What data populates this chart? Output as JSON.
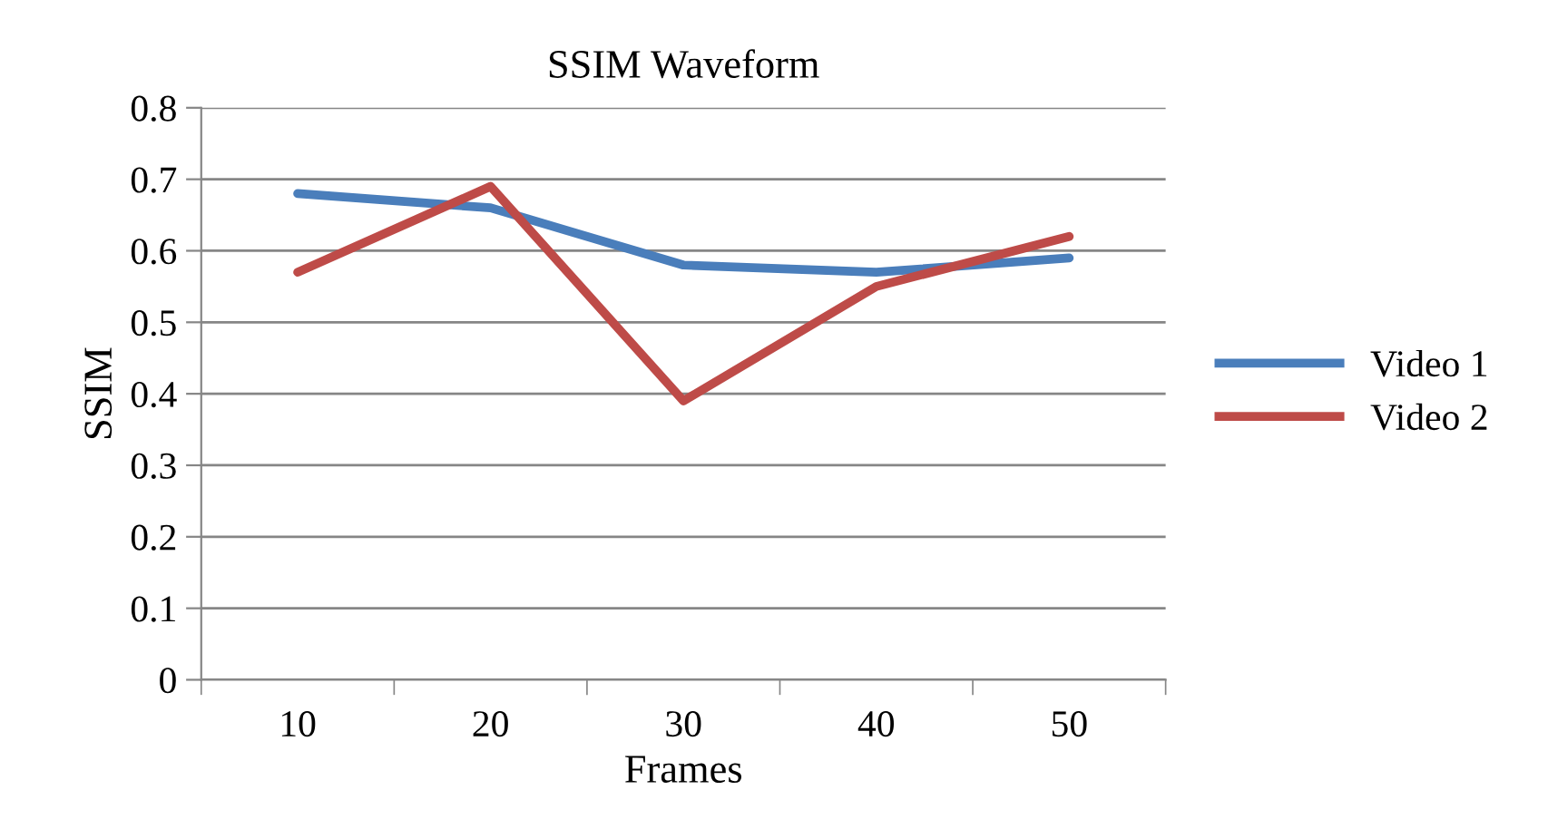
{
  "chart_data": {
    "type": "line",
    "title": "SSIM Waveform",
    "xlabel": "Frames",
    "ylabel": "SSIM",
    "categories": [
      "10",
      "20",
      "30",
      "40",
      "50"
    ],
    "series": [
      {
        "name": "Video 1",
        "color": "#4a7ebb",
        "values": [
          0.68,
          0.66,
          0.58,
          0.57,
          0.59
        ]
      },
      {
        "name": "Video 2",
        "color": "#be4b48",
        "values": [
          0.57,
          0.69,
          0.39,
          0.55,
          0.62
        ]
      }
    ],
    "ylim": [
      0,
      0.8
    ],
    "yticks": [
      0,
      0.1,
      0.2,
      0.3,
      0.4,
      0.5,
      0.6,
      0.7,
      0.8
    ],
    "grid": "y",
    "legend": "right",
    "marker": "none",
    "line_style": "solid"
  }
}
